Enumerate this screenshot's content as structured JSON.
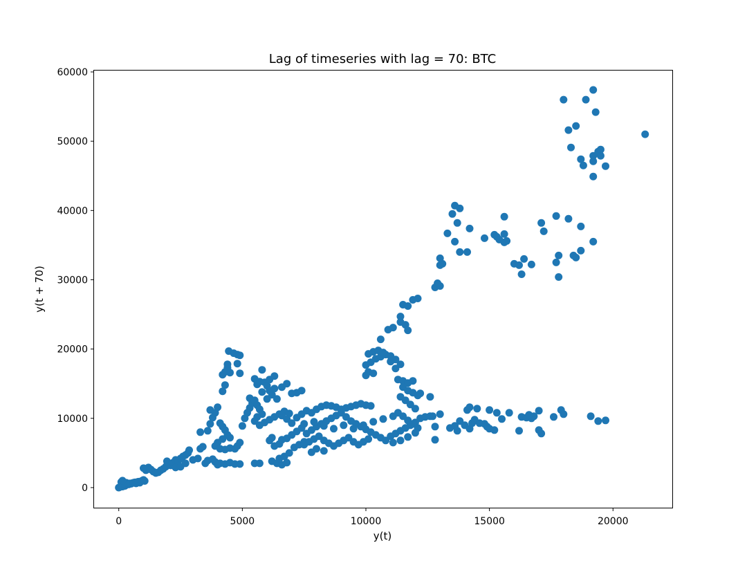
{
  "chart_data": {
    "type": "scatter",
    "title": "Lag of timeseries with lag = 70: BTC",
    "xlabel": "y(t)",
    "ylabel": "y(t + 70)",
    "xlim": [
      -1000,
      22400
    ],
    "ylim": [
      -2900,
      60200
    ],
    "xticks": [
      0,
      5000,
      10000,
      15000,
      20000
    ],
    "yticks": [
      0,
      10000,
      20000,
      30000,
      40000,
      50000,
      60000
    ],
    "xtick_labels": [
      "0",
      "5000",
      "10000",
      "15000",
      "20000"
    ],
    "ytick_labels": [
      "0",
      "10000",
      "20000",
      "30000",
      "40000",
      "50000",
      "60000"
    ],
    "grid": false,
    "legend": "none",
    "marker_color": "#1f77b4",
    "points": [
      [
        0,
        0
      ],
      [
        50,
        100
      ],
      [
        100,
        200
      ],
      [
        150,
        150
      ],
      [
        200,
        300
      ],
      [
        250,
        250
      ],
      [
        300,
        400
      ],
      [
        350,
        500
      ],
      [
        400,
        450
      ],
      [
        450,
        600
      ],
      [
        500,
        550
      ],
      [
        550,
        650
      ],
      [
        600,
        700
      ],
      [
        650,
        750
      ],
      [
        700,
        600
      ],
      [
        750,
        800
      ],
      [
        800,
        850
      ],
      [
        850,
        700
      ],
      [
        900,
        900
      ],
      [
        950,
        1000
      ],
      [
        1000,
        1100
      ],
      [
        1050,
        950
      ],
      [
        100,
        800
      ],
      [
        200,
        600
      ],
      [
        300,
        700
      ],
      [
        150,
        1000
      ],
      [
        1100,
        2500
      ],
      [
        1000,
        2800
      ],
      [
        1200,
        2900
      ],
      [
        1300,
        2600
      ],
      [
        1400,
        2300
      ],
      [
        1500,
        2100
      ],
      [
        1600,
        2200
      ],
      [
        1700,
        2500
      ],
      [
        1800,
        2700
      ],
      [
        1900,
        3000
      ],
      [
        2000,
        3500
      ],
      [
        1950,
        3800
      ],
      [
        2100,
        3200
      ],
      [
        2200,
        3600
      ],
      [
        2300,
        4000
      ],
      [
        2400,
        3800
      ],
      [
        2500,
        4200
      ],
      [
        2600,
        4500
      ],
      [
        2700,
        4700
      ],
      [
        2800,
        5000
      ],
      [
        2850,
        5400
      ],
      [
        2300,
        2900
      ],
      [
        2500,
        3000
      ],
      [
        2700,
        3500
      ],
      [
        3000,
        4000
      ],
      [
        3200,
        4200
      ],
      [
        3300,
        5600
      ],
      [
        3400,
        5900
      ],
      [
        3300,
        8000
      ],
      [
        3600,
        8200
      ],
      [
        3700,
        9200
      ],
      [
        3800,
        10100
      ],
      [
        3700,
        11200
      ],
      [
        3900,
        10800
      ],
      [
        4000,
        11600
      ],
      [
        4100,
        9300
      ],
      [
        4200,
        8800
      ],
      [
        4300,
        8300
      ],
      [
        4400,
        7600
      ],
      [
        4500,
        7200
      ],
      [
        4200,
        7000
      ],
      [
        4000,
        6500
      ],
      [
        3900,
        6000
      ],
      [
        4100,
        5600
      ],
      [
        4300,
        5500
      ],
      [
        4500,
        5700
      ],
      [
        4700,
        5600
      ],
      [
        4800,
        6000
      ],
      [
        4900,
        6500
      ],
      [
        3800,
        4100
      ],
      [
        3900,
        3700
      ],
      [
        4100,
        3500
      ],
      [
        4300,
        3400
      ],
      [
        4500,
        3600
      ],
      [
        4700,
        3400
      ],
      [
        4900,
        3400
      ],
      [
        3500,
        3500
      ],
      [
        3600,
        3900
      ],
      [
        4000,
        3300
      ],
      [
        4200,
        13900
      ],
      [
        4300,
        14800
      ],
      [
        4200,
        16300
      ],
      [
        4300,
        16700
      ],
      [
        4400,
        17300
      ],
      [
        4500,
        16600
      ],
      [
        4400,
        17800
      ],
      [
        4450,
        19700
      ],
      [
        4650,
        19400
      ],
      [
        4800,
        19200
      ],
      [
        4900,
        19100
      ],
      [
        4800,
        17900
      ],
      [
        4900,
        16500
      ],
      [
        5000,
        8900
      ],
      [
        5100,
        10000
      ],
      [
        5200,
        10800
      ],
      [
        5300,
        11500
      ],
      [
        5400,
        12200
      ],
      [
        5300,
        12900
      ],
      [
        5500,
        12600
      ],
      [
        5600,
        11900
      ],
      [
        5700,
        11300
      ],
      [
        5800,
        10600
      ],
      [
        5600,
        10200
      ],
      [
        5500,
        9600
      ],
      [
        5700,
        9000
      ],
      [
        5900,
        9400
      ],
      [
        6100,
        9800
      ],
      [
        6300,
        10200
      ],
      [
        6500,
        10600
      ],
      [
        6700,
        11000
      ],
      [
        6900,
        10700
      ],
      [
        6600,
        10400
      ],
      [
        6800,
        9900
      ],
      [
        5500,
        15700
      ],
      [
        5700,
        15300
      ],
      [
        5800,
        17000
      ],
      [
        5900,
        15200
      ],
      [
        6000,
        14700
      ],
      [
        6100,
        14000
      ],
      [
        6300,
        14300
      ],
      [
        5800,
        13800
      ],
      [
        6000,
        12800
      ],
      [
        6200,
        13400
      ],
      [
        6400,
        12800
      ],
      [
        6300,
        16100
      ],
      [
        6600,
        14500
      ],
      [
        6800,
        15000
      ],
      [
        7000,
        13600
      ],
      [
        7200,
        13700
      ],
      [
        7400,
        14000
      ],
      [
        6100,
        15600
      ],
      [
        5600,
        14900
      ],
      [
        5500,
        3500
      ],
      [
        5700,
        3500
      ],
      [
        6200,
        3800
      ],
      [
        6400,
        3500
      ],
      [
        6600,
        3300
      ],
      [
        6800,
        3600
      ],
      [
        6500,
        4200
      ],
      [
        6700,
        4500
      ],
      [
        6900,
        5000
      ],
      [
        6300,
        6000
      ],
      [
        6500,
        6300
      ],
      [
        6100,
        6800
      ],
      [
        6200,
        7200
      ],
      [
        6600,
        6900
      ],
      [
        6800,
        7100
      ],
      [
        7000,
        7600
      ],
      [
        7200,
        8100
      ],
      [
        7400,
        8600
      ],
      [
        7100,
        5800
      ],
      [
        7300,
        6200
      ],
      [
        7500,
        6600
      ],
      [
        7000,
        9300
      ],
      [
        7200,
        10100
      ],
      [
        7400,
        10600
      ],
      [
        7600,
        11100
      ],
      [
        7800,
        10800
      ],
      [
        8000,
        11300
      ],
      [
        8200,
        11700
      ],
      [
        8400,
        11900
      ],
      [
        8600,
        11800
      ],
      [
        8800,
        11600
      ],
      [
        9000,
        11300
      ],
      [
        9200,
        11500
      ],
      [
        9400,
        11700
      ],
      [
        9600,
        11900
      ],
      [
        9800,
        12100
      ],
      [
        10000,
        11900
      ],
      [
        10200,
        11800
      ],
      [
        7600,
        7800
      ],
      [
        7800,
        8300
      ],
      [
        8000,
        8800
      ],
      [
        8200,
        9200
      ],
      [
        8400,
        9600
      ],
      [
        8600,
        10000
      ],
      [
        8800,
        10400
      ],
      [
        9000,
        10800
      ],
      [
        9200,
        10200
      ],
      [
        9400,
        9600
      ],
      [
        9600,
        9200
      ],
      [
        9800,
        8800
      ],
      [
        10000,
        8400
      ],
      [
        10200,
        8000
      ],
      [
        10400,
        7600
      ],
      [
        10600,
        7200
      ],
      [
        10800,
        6800
      ],
      [
        11000,
        7400
      ],
      [
        11200,
        7800
      ],
      [
        11400,
        8200
      ],
      [
        11600,
        8600
      ],
      [
        11800,
        9000
      ],
      [
        12000,
        9400
      ],
      [
        12200,
        10000
      ],
      [
        12400,
        10200
      ],
      [
        12600,
        10300
      ],
      [
        7500,
        6200
      ],
      [
        7700,
        6600
      ],
      [
        7900,
        7000
      ],
      [
        8100,
        7400
      ],
      [
        8300,
        6800
      ],
      [
        8500,
        6400
      ],
      [
        8700,
        6000
      ],
      [
        8900,
        6400
      ],
      [
        9100,
        6800
      ],
      [
        9300,
        7200
      ],
      [
        9500,
        6600
      ],
      [
        9700,
        6200
      ],
      [
        9900,
        6600
      ],
      [
        10100,
        7000
      ],
      [
        7800,
        5100
      ],
      [
        8000,
        5600
      ],
      [
        8300,
        5300
      ],
      [
        7500,
        9200
      ],
      [
        7900,
        9500
      ],
      [
        8300,
        8900
      ],
      [
        8700,
        8500
      ],
      [
        9100,
        9000
      ],
      [
        9500,
        8500
      ],
      [
        9900,
        9000
      ],
      [
        10300,
        9500
      ],
      [
        10700,
        9900
      ],
      [
        11100,
        10300
      ],
      [
        10000,
        16200
      ],
      [
        10100,
        16700
      ],
      [
        10300,
        16500
      ],
      [
        10000,
        17700
      ],
      [
        10200,
        18100
      ],
      [
        10400,
        18600
      ],
      [
        10600,
        18900
      ],
      [
        10800,
        19200
      ],
      [
        11000,
        19000
      ],
      [
        11200,
        18500
      ],
      [
        11400,
        17800
      ],
      [
        11200,
        17200
      ],
      [
        10100,
        19300
      ],
      [
        10300,
        19600
      ],
      [
        10500,
        19800
      ],
      [
        10700,
        19500
      ],
      [
        11000,
        18200
      ],
      [
        10600,
        21400
      ],
      [
        10900,
        22800
      ],
      [
        11100,
        23100
      ],
      [
        11400,
        23900
      ],
      [
        11600,
        23500
      ],
      [
        11700,
        22700
      ],
      [
        11400,
        24700
      ],
      [
        11500,
        26400
      ],
      [
        11700,
        26200
      ],
      [
        11900,
        27100
      ],
      [
        12100,
        27300
      ],
      [
        11300,
        15600
      ],
      [
        11500,
        15400
      ],
      [
        11700,
        15100
      ],
      [
        11900,
        15400
      ],
      [
        11500,
        14500
      ],
      [
        11700,
        14000
      ],
      [
        11900,
        13700
      ],
      [
        12100,
        13300
      ],
      [
        11400,
        13100
      ],
      [
        11600,
        12600
      ],
      [
        11800,
        12000
      ],
      [
        12000,
        11400
      ],
      [
        12200,
        13600
      ],
      [
        12600,
        13100
      ],
      [
        11300,
        10800
      ],
      [
        11500,
        10300
      ],
      [
        11700,
        9700
      ],
      [
        11900,
        9200
      ],
      [
        12100,
        8600
      ],
      [
        12000,
        7900
      ],
      [
        11700,
        7300
      ],
      [
        11400,
        6800
      ],
      [
        11100,
        6500
      ],
      [
        12700,
        10300
      ],
      [
        13000,
        10600
      ],
      [
        12800,
        8800
      ],
      [
        12800,
        6900
      ],
      [
        12800,
        28900
      ],
      [
        13000,
        29100
      ],
      [
        12900,
        29500
      ],
      [
        13000,
        32100
      ],
      [
        13100,
        32300
      ],
      [
        13000,
        33100
      ],
      [
        13300,
        36700
      ],
      [
        13500,
        39500
      ],
      [
        13600,
        40700
      ],
      [
        13800,
        40300
      ],
      [
        13700,
        38200
      ],
      [
        13600,
        35500
      ],
      [
        13800,
        34000
      ],
      [
        14100,
        34000
      ],
      [
        14200,
        37400
      ],
      [
        14800,
        36000
      ],
      [
        15200,
        36500
      ],
      [
        15300,
        36200
      ],
      [
        15400,
        35800
      ],
      [
        15600,
        36600
      ],
      [
        15600,
        39100
      ],
      [
        15700,
        35600
      ],
      [
        15600,
        35400
      ],
      [
        16000,
        32300
      ],
      [
        16200,
        32100
      ],
      [
        16300,
        30800
      ],
      [
        16400,
        33000
      ],
      [
        16700,
        32200
      ],
      [
        17100,
        38200
      ],
      [
        17200,
        37000
      ],
      [
        17700,
        32500
      ],
      [
        17800,
        33500
      ],
      [
        17800,
        30400
      ],
      [
        18200,
        38800
      ],
      [
        17700,
        39200
      ],
      [
        18400,
        33500
      ],
      [
        18500,
        33200
      ],
      [
        18700,
        34200
      ],
      [
        18700,
        37700
      ],
      [
        19200,
        35500
      ],
      [
        18000,
        56000
      ],
      [
        18200,
        51600
      ],
      [
        18500,
        52200
      ],
      [
        18300,
        49100
      ],
      [
        18700,
        47400
      ],
      [
        18800,
        46500
      ],
      [
        19200,
        57400
      ],
      [
        18900,
        56000
      ],
      [
        19300,
        54200
      ],
      [
        19200,
        47100
      ],
      [
        19200,
        47900
      ],
      [
        19400,
        48500
      ],
      [
        19500,
        47900
      ],
      [
        19500,
        48800
      ],
      [
        19700,
        46400
      ],
      [
        19200,
        44900
      ],
      [
        21300,
        51000
      ],
      [
        13400,
        8600
      ],
      [
        13600,
        8900
      ],
      [
        13700,
        8200
      ],
      [
        13800,
        9600
      ],
      [
        14000,
        9000
      ],
      [
        14200,
        8500
      ],
      [
        14300,
        9300
      ],
      [
        14400,
        9800
      ],
      [
        14100,
        11200
      ],
      [
        14500,
        11400
      ],
      [
        14600,
        9300
      ],
      [
        14800,
        9200
      ],
      [
        14900,
        8800
      ],
      [
        15000,
        8500
      ],
      [
        15200,
        8300
      ],
      [
        15300,
        10800
      ],
      [
        15500,
        9900
      ],
      [
        15800,
        10800
      ],
      [
        16200,
        8200
      ],
      [
        16300,
        10200
      ],
      [
        16500,
        10100
      ],
      [
        16700,
        10000
      ],
      [
        16800,
        10300
      ],
      [
        17000,
        11100
      ],
      [
        17000,
        8300
      ],
      [
        17100,
        7800
      ],
      [
        17600,
        10200
      ],
      [
        17900,
        11200
      ],
      [
        18000,
        10600
      ],
      [
        19100,
        10300
      ],
      [
        19400,
        9600
      ],
      [
        19700,
        9700
      ],
      [
        14200,
        11600
      ],
      [
        15000,
        11200
      ],
      [
        16600,
        10500
      ]
    ]
  }
}
